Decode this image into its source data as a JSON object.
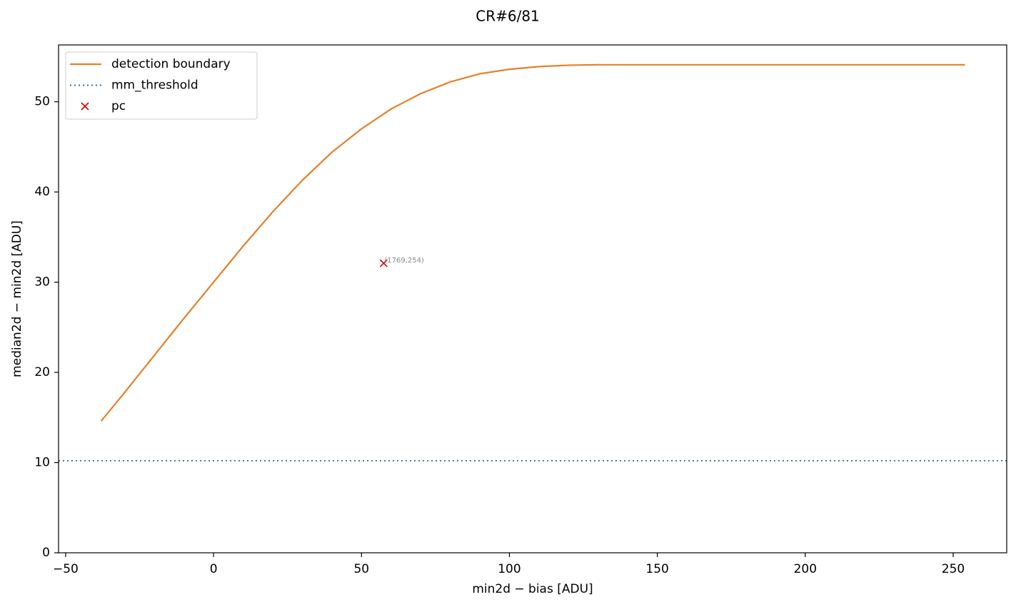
{
  "chart_data": {
    "type": "line",
    "title": "CR#6/81",
    "xlabel": "min2d − bias  [ADU]",
    "ylabel": "median2d − min2d  [ADU]",
    "xlim": [
      -52.4,
      268.1
    ],
    "ylim": [
      0,
      56.3
    ],
    "xticks": [
      {
        "value": -50,
        "label": "−50"
      },
      0,
      50,
      100,
      150,
      200,
      250
    ],
    "yticks": [
      0,
      10,
      20,
      30,
      40,
      50
    ],
    "grid": false,
    "legend": "upper left",
    "annotation": "(1769,254)",
    "series": [
      {
        "name": "detection boundary",
        "color": "#e5802a",
        "linestyle": "solid",
        "x": [
          -38,
          -30,
          -20,
          -10,
          0,
          10,
          20,
          30,
          40,
          50,
          60,
          70,
          80,
          90,
          100,
          110,
          120,
          130,
          150,
          200,
          254
        ],
        "values": [
          14.6,
          17.8,
          21.9,
          26.0,
          30.0,
          34.0,
          37.8,
          41.3,
          44.4,
          47.0,
          49.2,
          50.9,
          52.2,
          53.1,
          53.6,
          53.9,
          54.05,
          54.1,
          54.1,
          54.1,
          54.1
        ]
      },
      {
        "name": "mm_threshold",
        "color": "#4a7ca8",
        "linestyle": "dotted",
        "values": [
          10.2
        ]
      },
      {
        "name": "pc",
        "color": "#d40000",
        "linestyle": "none",
        "marker": "x",
        "x": [
          57.5
        ],
        "values": [
          32.1
        ]
      }
    ]
  }
}
